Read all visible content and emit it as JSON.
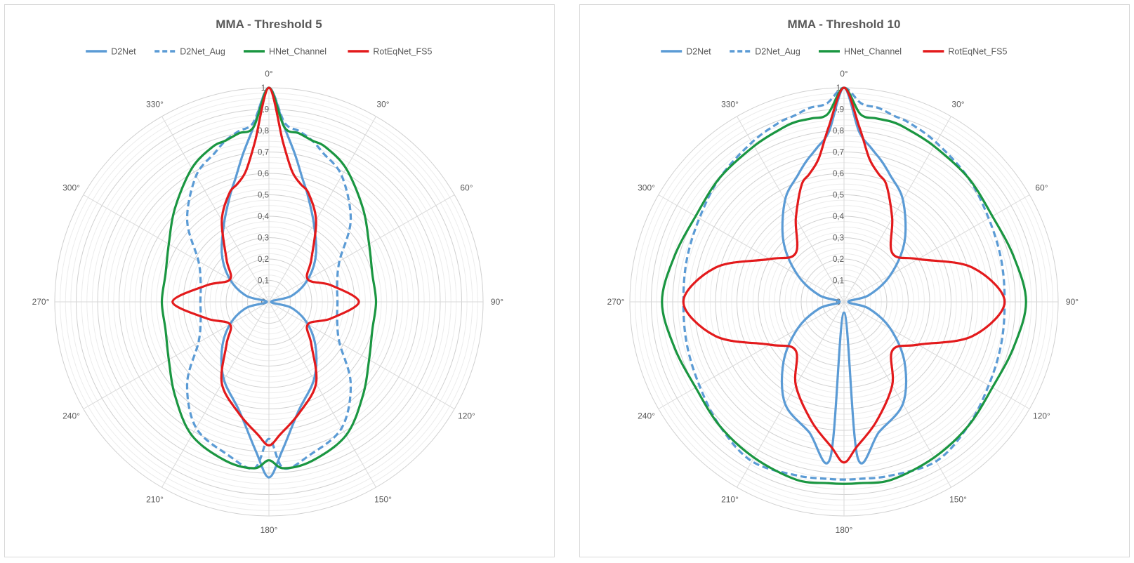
{
  "chart_data": [
    {
      "type": "radar",
      "title": "MMA - Threshold 5",
      "angle_labels": [
        "0°",
        "30°",
        "60°",
        "90°",
        "120°",
        "150°",
        "180°",
        "210°",
        "240°",
        "270°",
        "300°",
        "330°"
      ],
      "radial_tick_labels": [
        "0",
        "0,1",
        "0,2",
        "0,3",
        "0,4",
        "0,5",
        "0,6",
        "0,7",
        "0,8",
        "0,9",
        "1"
      ],
      "rlim": [
        0,
        1
      ],
      "angles_deg": [
        0,
        5,
        10,
        15,
        20,
        30,
        45,
        60,
        75,
        90,
        105,
        120,
        135,
        150,
        165,
        175,
        180,
        185,
        195,
        210,
        225,
        240,
        255,
        270,
        285,
        300,
        315,
        330,
        340,
        345,
        350,
        355
      ],
      "legend_position": "top",
      "series": [
        {
          "name": "D2Net",
          "color": "#5b9bd5",
          "dash": "solid",
          "values": [
            1.0,
            0.82,
            0.7,
            0.6,
            0.53,
            0.42,
            0.31,
            0.21,
            0.11,
            0.01,
            0.11,
            0.21,
            0.31,
            0.42,
            0.53,
            0.7,
            0.82,
            0.7,
            0.53,
            0.42,
            0.31,
            0.21,
            0.11,
            0.01,
            0.11,
            0.21,
            0.31,
            0.42,
            0.53,
            0.6,
            0.7,
            0.82
          ]
        },
        {
          "name": "D2Net_Aug",
          "color": "#5b9bd5",
          "dash": "dashed",
          "values": [
            1.0,
            0.84,
            0.81,
            0.78,
            0.74,
            0.68,
            0.54,
            0.38,
            0.33,
            0.32,
            0.33,
            0.38,
            0.54,
            0.68,
            0.74,
            0.78,
            0.64,
            0.78,
            0.74,
            0.68,
            0.54,
            0.38,
            0.33,
            0.32,
            0.33,
            0.38,
            0.54,
            0.68,
            0.74,
            0.78,
            0.81,
            0.84
          ]
        },
        {
          "name": "HNet_Channel",
          "color": "#1a9641",
          "dash": "solid",
          "values": [
            1.0,
            0.82,
            0.8,
            0.78,
            0.77,
            0.72,
            0.62,
            0.54,
            0.5,
            0.5,
            0.5,
            0.54,
            0.62,
            0.72,
            0.77,
            0.78,
            0.74,
            0.78,
            0.77,
            0.72,
            0.62,
            0.54,
            0.5,
            0.5,
            0.5,
            0.54,
            0.62,
            0.72,
            0.77,
            0.78,
            0.8,
            0.82
          ]
        },
        {
          "name": "RotEqNet_FS5",
          "color": "#e31a1c",
          "dash": "solid",
          "values": [
            1.0,
            0.75,
            0.62,
            0.57,
            0.54,
            0.44,
            0.28,
            0.21,
            0.3,
            0.42,
            0.3,
            0.21,
            0.28,
            0.44,
            0.54,
            0.62,
            0.67,
            0.62,
            0.54,
            0.44,
            0.28,
            0.21,
            0.3,
            0.45,
            0.3,
            0.21,
            0.28,
            0.44,
            0.54,
            0.57,
            0.62,
            0.75
          ]
        }
      ]
    },
    {
      "type": "radar",
      "title": "MMA - Threshold 10",
      "angle_labels": [
        "0°",
        "30°",
        "60°",
        "90°",
        "120°",
        "150°",
        "180°",
        "210°",
        "240°",
        "270°",
        "300°",
        "330°"
      ],
      "radial_tick_labels": [
        "0",
        "0,1",
        "0,2",
        "0,3",
        "0,4",
        "0,5",
        "0,6",
        "0,7",
        "0,8",
        "0,9",
        "1"
      ],
      "rlim": [
        0,
        1
      ],
      "angles_deg": [
        0,
        5,
        10,
        15,
        20,
        30,
        45,
        60,
        75,
        90,
        105,
        120,
        135,
        150,
        165,
        175,
        180,
        185,
        195,
        210,
        225,
        240,
        255,
        270,
        285,
        300,
        315,
        330,
        340,
        345,
        350,
        355
      ],
      "legend_position": "top",
      "series": [
        {
          "name": "D2Net",
          "color": "#5b9bd5",
          "dash": "solid",
          "values": [
            1.0,
            0.8,
            0.73,
            0.68,
            0.63,
            0.55,
            0.4,
            0.25,
            0.12,
            0.02,
            0.12,
            0.25,
            0.4,
            0.55,
            0.63,
            0.73,
            0.05,
            0.73,
            0.63,
            0.55,
            0.4,
            0.25,
            0.12,
            0.02,
            0.12,
            0.25,
            0.4,
            0.55,
            0.63,
            0.68,
            0.73,
            0.8
          ]
        },
        {
          "name": "D2Net_Aug",
          "color": "#5b9bd5",
          "dash": "dashed",
          "values": [
            1.0,
            0.93,
            0.92,
            0.9,
            0.89,
            0.86,
            0.82,
            0.78,
            0.76,
            0.75,
            0.76,
            0.78,
            0.82,
            0.86,
            0.84,
            0.83,
            0.83,
            0.83,
            0.84,
            0.86,
            0.82,
            0.78,
            0.76,
            0.75,
            0.76,
            0.78,
            0.82,
            0.86,
            0.89,
            0.9,
            0.92,
            0.93
          ]
        },
        {
          "name": "HNet_Channel",
          "color": "#1a9641",
          "dash": "solid",
          "values": [
            1.0,
            0.88,
            0.87,
            0.87,
            0.86,
            0.84,
            0.82,
            0.8,
            0.82,
            0.85,
            0.82,
            0.8,
            0.82,
            0.84,
            0.86,
            0.85,
            0.85,
            0.85,
            0.86,
            0.84,
            0.82,
            0.8,
            0.82,
            0.85,
            0.82,
            0.8,
            0.82,
            0.84,
            0.86,
            0.87,
            0.87,
            0.88
          ]
        },
        {
          "name": "RotEqNet_FS5",
          "color": "#e31a1c",
          "dash": "solid",
          "values": [
            1.0,
            0.82,
            0.68,
            0.62,
            0.58,
            0.45,
            0.32,
            0.4,
            0.62,
            0.75,
            0.62,
            0.4,
            0.32,
            0.45,
            0.58,
            0.68,
            0.75,
            0.68,
            0.58,
            0.45,
            0.32,
            0.4,
            0.62,
            0.75,
            0.62,
            0.4,
            0.32,
            0.45,
            0.58,
            0.62,
            0.68,
            0.82
          ]
        }
      ]
    }
  ]
}
